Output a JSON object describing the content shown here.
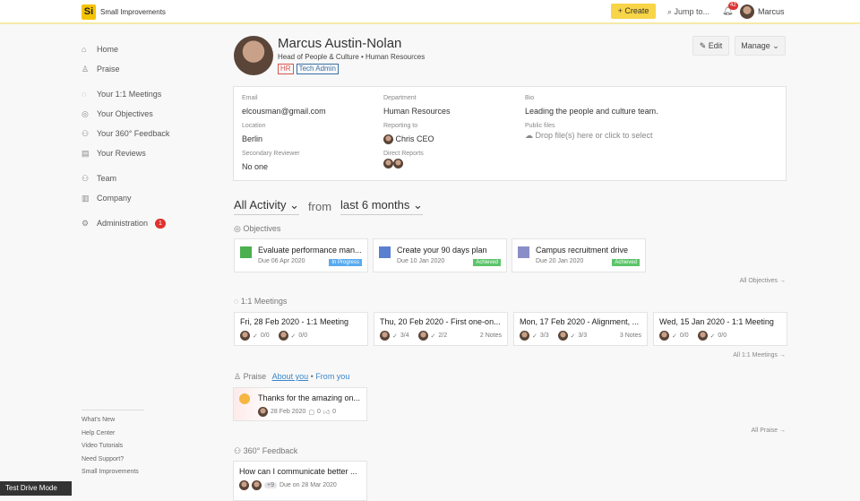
{
  "topbar": {
    "logo": "Si",
    "brand": "Small Improvements",
    "create": "+ Create",
    "jump": "Jump to...",
    "notifications": "42",
    "user": "Marcus"
  },
  "sidebar": {
    "items": [
      {
        "label": "Home",
        "icon": "⌂"
      },
      {
        "label": "Praise",
        "icon": "♙"
      },
      {
        "label": "Your 1:1 Meetings",
        "icon": "◌"
      },
      {
        "label": "Your Objectives",
        "icon": "◎"
      },
      {
        "label": "Your 360° Feedback",
        "icon": "⚇"
      },
      {
        "label": "Your Reviews",
        "icon": "▤"
      },
      {
        "label": "Team",
        "icon": "⚇"
      },
      {
        "label": "Company",
        "icon": "▥"
      },
      {
        "label": "Administration",
        "icon": "⚙",
        "badge": "1"
      }
    ],
    "footer": [
      "What's New",
      "Help Center",
      "Video Tutorials",
      "Need Support?",
      "Small Improvements"
    ],
    "test_drive": "Test Drive Mode"
  },
  "profile": {
    "name": "Marcus Austin-Nolan",
    "title": "Head of People & Culture • Human Resources",
    "tags": [
      "HR",
      "Tech Admin"
    ],
    "edit": "Edit",
    "manage": "Manage",
    "email_label": "Email",
    "email": "elcousman@gmail.com",
    "department_label": "Department",
    "department": "Human Resources",
    "bio_label": "Bio",
    "bio": "Leading the people and culture team.",
    "location_label": "Location",
    "location": "Berlin",
    "reporting_label": "Reporting to",
    "reporting": "Chris CEO",
    "files_label": "Public files",
    "files": "Drop file(s) here or click to select",
    "secondary_label": "Secondary Reviewer",
    "secondary": "No one",
    "direct_label": "Direct Reports"
  },
  "activity": {
    "filter": "All Activity",
    "from": "from",
    "range": "last 6 months"
  },
  "objectives": {
    "title": "Objectives",
    "all": "All Objectives →",
    "items": [
      {
        "title": "Evaluate performance man...",
        "due": "Due 06 Apr 2020",
        "status": "In Progress",
        "color": "#5aabf0",
        "icon_bg": "#4caf50"
      },
      {
        "title": "Create your 90 days plan",
        "due": "Due 10 Jan 2020",
        "status": "Achieved",
        "color": "#5cc46a",
        "icon_bg": "#5b7fd0"
      },
      {
        "title": "Campus recruitment drive",
        "due": "Due 20 Jan 2020",
        "status": "Achieved",
        "color": "#5cc46a",
        "icon_bg": "#8a8ec8"
      }
    ]
  },
  "meetings": {
    "title": "1:1 Meetings",
    "all": "All 1:1 Meetings →",
    "items": [
      {
        "title": "Fri, 28 Feb 2020 - 1:1 Meeting",
        "a": "0/0",
        "b": "0/0",
        "notes": ""
      },
      {
        "title": "Thu, 20 Feb 2020 - First one-on...",
        "a": "3/4",
        "b": "2/2",
        "notes": "2 Notes"
      },
      {
        "title": "Mon, 17 Feb 2020 - Alignment, ...",
        "a": "3/3",
        "b": "3/3",
        "notes": "3 Notes"
      },
      {
        "title": "Wed, 15 Jan 2020 - 1:1 Meeting",
        "a": "0/0",
        "b": "0/0",
        "notes": ""
      }
    ]
  },
  "praise": {
    "title": "Praise",
    "about": "About you",
    "from": "From you",
    "all": "All Praise →",
    "item": {
      "title": "Thanks for the amazing on...",
      "date": "28 Feb 2020",
      "comments": "0",
      "likes": "0"
    }
  },
  "feedback": {
    "title": "360° Feedback",
    "item": {
      "title": "How can I communicate better ...",
      "more": "+9",
      "due": "Due on 28 Mar 2020"
    }
  }
}
